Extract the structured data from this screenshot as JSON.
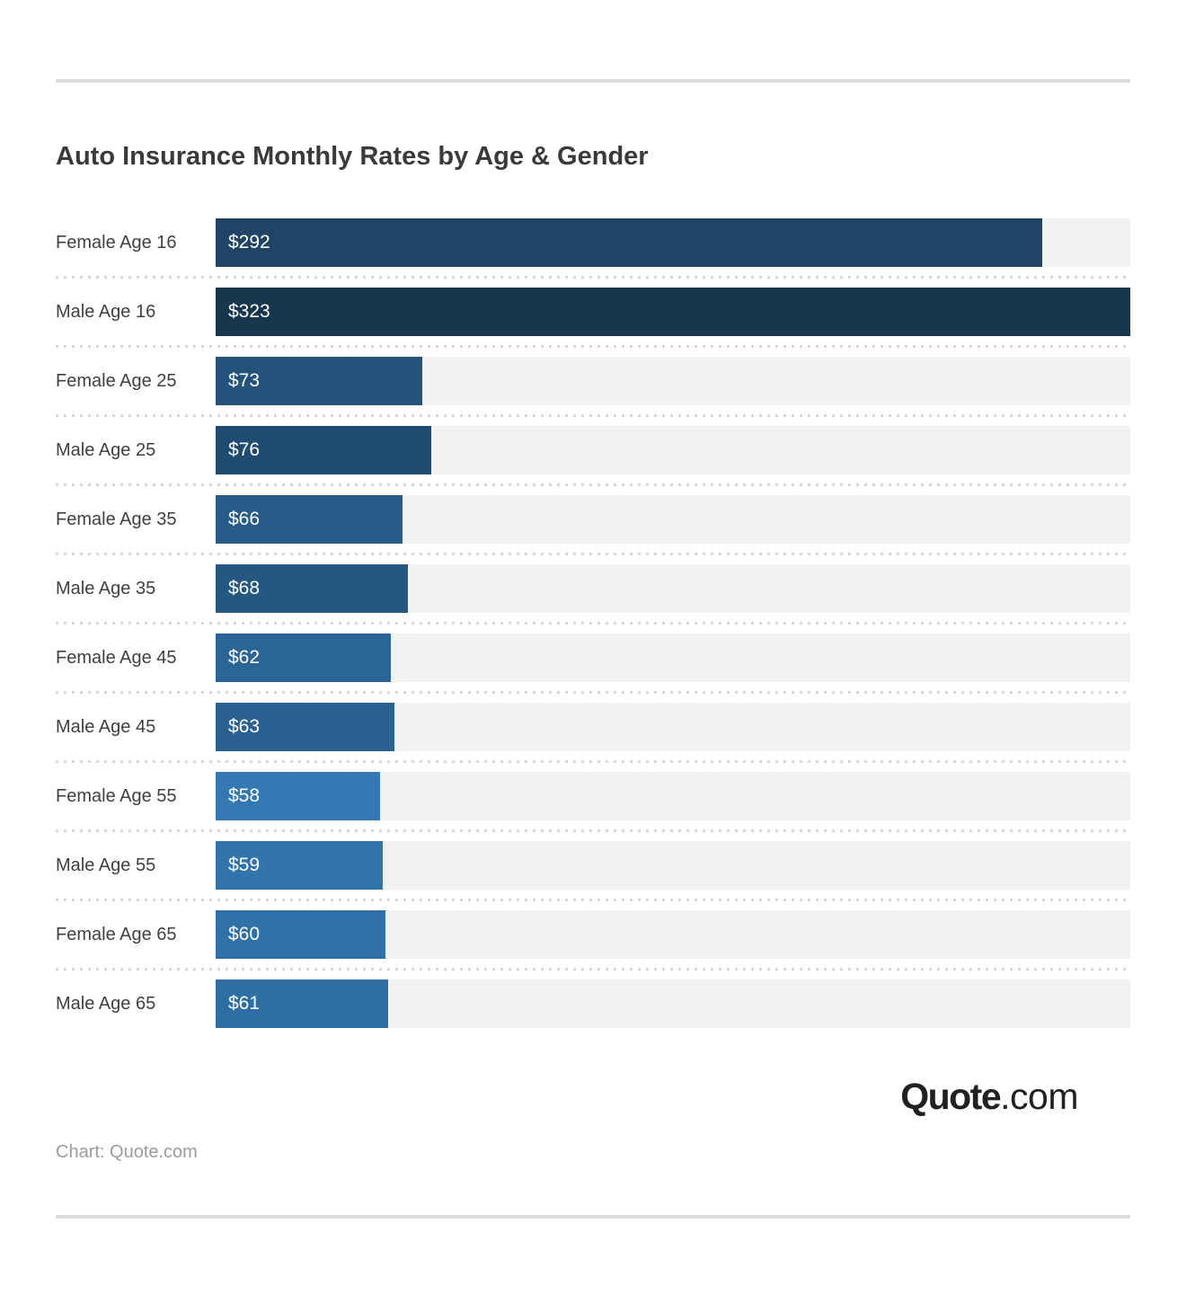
{
  "page": {
    "title": "Auto Insurance Monthly Rates by Age & Gender",
    "credit": "Chart: Quote.com",
    "logo": {
      "bold": "Quote",
      "light": ".com"
    }
  },
  "chart_data": {
    "type": "bar",
    "orientation": "horizontal",
    "title": "Auto Insurance Monthly Rates by Age & Gender",
    "categories": [
      "Female Age 16",
      "Male Age 16",
      "Female Age 25",
      "Male Age 25",
      "Female Age 35",
      "Male Age 35",
      "Female Age 45",
      "Male Age 45",
      "Female Age 55",
      "Male Age 55",
      "Female Age 65",
      "Male Age 65"
    ],
    "values": [
      292,
      323,
      73,
      76,
      66,
      68,
      62,
      63,
      58,
      59,
      60,
      61
    ],
    "value_labels": [
      "$292",
      "$323",
      "$73",
      "$76",
      "$66",
      "$68",
      "$62",
      "$63",
      "$58",
      "$59",
      "$60",
      "$61"
    ],
    "bar_colors": [
      "#1f4466",
      "#17374f",
      "#23527b",
      "#1f4b72",
      "#285c88",
      "#265782",
      "#2b6496",
      "#2a6190",
      "#3378b2",
      "#3274ac",
      "#3071a9",
      "#2e6ea3"
    ],
    "xlim": [
      0,
      323
    ],
    "units": "USD per month",
    "track_color": "#f2f2f2",
    "grid": false,
    "legend_position": "none"
  }
}
